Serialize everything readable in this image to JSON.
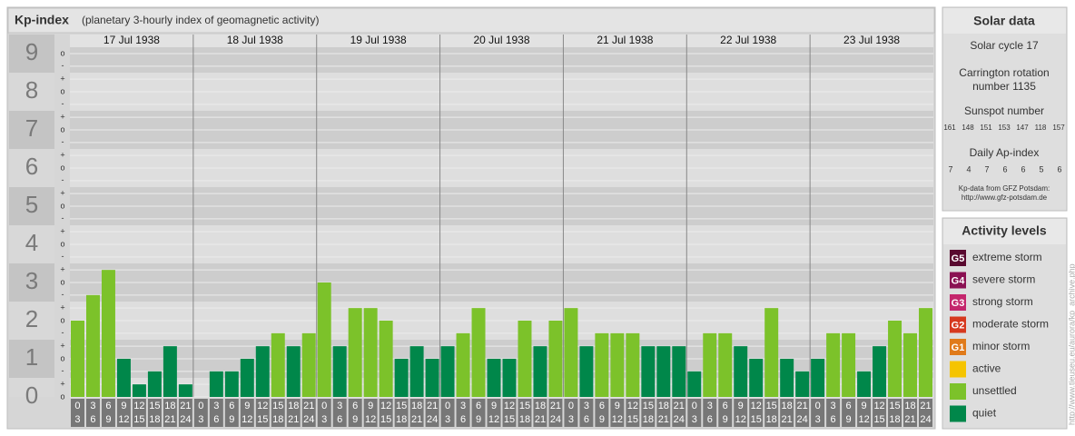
{
  "chart_data": {
    "type": "bar",
    "title": "Kp-index",
    "subtitle": "(planetary 3-hourly index of geomagnetic activity)",
    "ylim": [
      0,
      9.5
    ],
    "yticks": [
      0,
      1,
      2,
      3,
      4,
      5,
      6,
      7,
      8,
      9
    ],
    "minor_ticks": [
      {
        "value": 0,
        "label": "o"
      },
      {
        "value": 0.33,
        "label": "+"
      },
      {
        "value": 0.67,
        "label": "-"
      },
      {
        "value": 1,
        "label": "o"
      },
      {
        "value": 1.33,
        "label": "+"
      },
      {
        "value": 1.67,
        "label": "-"
      },
      {
        "value": 2,
        "label": "o"
      },
      {
        "value": 2.33,
        "label": "+"
      },
      {
        "value": 2.67,
        "label": "-"
      },
      {
        "value": 3,
        "label": "o"
      },
      {
        "value": 3.33,
        "label": "+"
      },
      {
        "value": 3.67,
        "label": "-"
      },
      {
        "value": 4,
        "label": "o"
      },
      {
        "value": 4.33,
        "label": "+"
      },
      {
        "value": 4.67,
        "label": "-"
      },
      {
        "value": 5,
        "label": "o"
      },
      {
        "value": 5.33,
        "label": "+"
      },
      {
        "value": 5.67,
        "label": "-"
      },
      {
        "value": 6,
        "label": "o"
      },
      {
        "value": 6.33,
        "label": "+"
      },
      {
        "value": 6.67,
        "label": "-"
      },
      {
        "value": 7,
        "label": "o"
      },
      {
        "value": 7.33,
        "label": "+"
      },
      {
        "value": 7.67,
        "label": "-"
      },
      {
        "value": 8,
        "label": "o"
      },
      {
        "value": 8.33,
        "label": "+"
      },
      {
        "value": 8.67,
        "label": "-"
      },
      {
        "value": 9,
        "label": "o"
      }
    ],
    "intervals": [
      [
        "0",
        "3"
      ],
      [
        "3",
        "6"
      ],
      [
        "6",
        "9"
      ],
      [
        "9",
        "12"
      ],
      [
        "12",
        "15"
      ],
      [
        "15",
        "18"
      ],
      [
        "18",
        "21"
      ],
      [
        "21",
        "24"
      ]
    ],
    "days": [
      {
        "date": "17 Jul 1938",
        "values": [
          2,
          2.67,
          3.33,
          1,
          0.33,
          0.67,
          1.33,
          0.33
        ],
        "colors": [
          "#7cc22a",
          "#7cc22a",
          "#7cc22a",
          "#00874a",
          "#00874a",
          "#00874a",
          "#00874a",
          "#00874a"
        ]
      },
      {
        "date": "18 Jul 1938",
        "values": [
          0,
          0.67,
          0.67,
          1,
          1.33,
          1.67,
          1.33,
          1.67
        ],
        "colors": [
          "#00874a",
          "#00874a",
          "#00874a",
          "#00874a",
          "#00874a",
          "#7cc22a",
          "#00874a",
          "#7cc22a"
        ]
      },
      {
        "date": "19 Jul 1938",
        "values": [
          3,
          1.33,
          2.33,
          2.33,
          2,
          1,
          1.33,
          1
        ],
        "colors": [
          "#7cc22a",
          "#00874a",
          "#7cc22a",
          "#7cc22a",
          "#7cc22a",
          "#00874a",
          "#00874a",
          "#00874a"
        ]
      },
      {
        "date": "20 Jul 1938",
        "values": [
          1.33,
          1.67,
          2.33,
          1,
          1,
          2,
          1.33,
          2
        ],
        "colors": [
          "#00874a",
          "#7cc22a",
          "#7cc22a",
          "#00874a",
          "#00874a",
          "#7cc22a",
          "#00874a",
          "#7cc22a"
        ]
      },
      {
        "date": "21 Jul 1938",
        "values": [
          2.33,
          1.33,
          1.67,
          1.67,
          1.67,
          1.33,
          1.33,
          1.33
        ],
        "colors": [
          "#7cc22a",
          "#00874a",
          "#7cc22a",
          "#7cc22a",
          "#7cc22a",
          "#00874a",
          "#00874a",
          "#00874a"
        ]
      },
      {
        "date": "22 Jul 1938",
        "values": [
          0.67,
          1.67,
          1.67,
          1.33,
          1,
          2.33,
          1,
          0.67
        ],
        "colors": [
          "#00874a",
          "#7cc22a",
          "#7cc22a",
          "#00874a",
          "#00874a",
          "#7cc22a",
          "#00874a",
          "#00874a"
        ]
      },
      {
        "date": "23 Jul 1938",
        "values": [
          1,
          1.67,
          1.67,
          0.67,
          1.33,
          2,
          1.67,
          2.33
        ],
        "colors": [
          "#00874a",
          "#7cc22a",
          "#7cc22a",
          "#00874a",
          "#00874a",
          "#7cc22a",
          "#7cc22a",
          "#7cc22a"
        ]
      }
    ],
    "solar": {
      "title": "Solar data",
      "cycle": "Solar cycle 17",
      "carrington": [
        "Carrington rotation",
        "number 1135"
      ],
      "sunspot_title": "Sunspot number",
      "sunspots": [
        161,
        148,
        151,
        153,
        147,
        118,
        157
      ],
      "ap_title": "Daily Ap-index",
      "ap": [
        7,
        4,
        7,
        6,
        6,
        5,
        6
      ],
      "source": [
        "Kp-data from GFZ Potsdam:",
        "http://www.gfz-potsdam.de"
      ]
    },
    "activity": {
      "title": "Activity levels",
      "levels": [
        {
          "code": "G5",
          "name": "extreme storm",
          "color": "#5a0a30"
        },
        {
          "code": "G4",
          "name": "severe storm",
          "color": "#8a1052"
        },
        {
          "code": "G3",
          "name": "strong storm",
          "color": "#c4266c"
        },
        {
          "code": "G2",
          "name": "moderate storm",
          "color": "#d6391f"
        },
        {
          "code": "G1",
          "name": "minor storm",
          "color": "#e07a1a"
        },
        {
          "name": "active",
          "color": "#f5c400"
        },
        {
          "name": "unsettled",
          "color": "#7cc22a"
        },
        {
          "name": "quiet",
          "color": "#00874a"
        }
      ]
    },
    "credit": "http://www.tieuseu.eu/aurora/kp_archive.php"
  }
}
